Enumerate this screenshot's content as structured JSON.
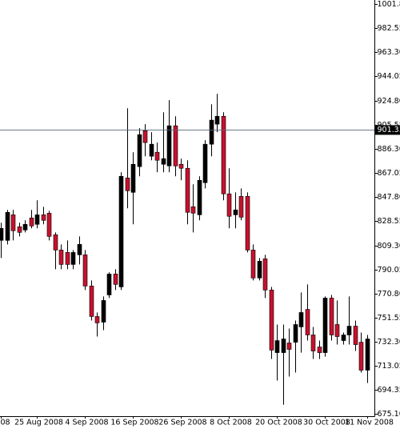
{
  "chart_data": {
    "type": "candlestick",
    "categories": [
      "008",
      null,
      null,
      null,
      null,
      null,
      "25 Aug 2008",
      null,
      null,
      null,
      null,
      null,
      null,
      null,
      "4 Sep 2008",
      null,
      null,
      null,
      null,
      null,
      null,
      null,
      "16 Sep 2008",
      null,
      null,
      null,
      null,
      null,
      null,
      null,
      "26 Sep 2008",
      null,
      null,
      null,
      null,
      null,
      null,
      null,
      "8 Oct 2008",
      null,
      null,
      null,
      null,
      null,
      null,
      null,
      "20 Oct 2008",
      null,
      null,
      null,
      null,
      null,
      null,
      null,
      "30 Oct 2008",
      null,
      null,
      null,
      null,
      null,
      null,
      "11 Nov 2008"
    ],
    "open": [
      813.3,
      813.3,
      833.7,
      824.2,
      821.6,
      831.2,
      826.1,
      833.7,
      835.0,
      817.8,
      805.6,
      803.7,
      794.1,
      801.8,
      801.8,
      776.9,
      752.6,
      748.1,
      769.8,
      786.5,
      776.2,
      863.1,
      851.6,
      872.1,
      900.8,
      880.4,
      883.6,
      874.0,
      872.7,
      904.7,
      874.0,
      870.8,
      840.1,
      833.7,
      859.3,
      890.0,
      906.0,
      912.3,
      850.4,
      833.7,
      848.4,
      848.4,
      805.6,
      783.3,
      798.6,
      773.7,
      723.8,
      723.8,
      731.5,
      732.1,
      744.3,
      758.3,
      737.9,
      728.3,
      723.8,
      767.3,
      746.2,
      733.4,
      737.9,
      744.9,
      732.1,
      709.8
    ],
    "high": [
      827.4,
      837.6,
      837.6,
      827.4,
      829.3,
      837.6,
      845.3,
      840.1,
      836.9,
      819.7,
      810.1,
      813.3,
      805.6,
      816.5,
      805.6,
      781.4,
      755.8,
      768.6,
      787.8,
      790.3,
      867.6,
      918.7,
      883.6,
      902.8,
      906.0,
      899.6,
      891.3,
      915.5,
      925.1,
      912.3,
      878.5,
      877.2,
      858.0,
      864.4,
      893.2,
      921.9,
      930.2,
      915.5,
      870.8,
      851.6,
      854.8,
      851.6,
      810.1,
      799.2,
      801.8,
      776.2,
      746.2,
      746.2,
      743.0,
      749.4,
      771.8,
      778.2,
      744.3,
      733.4,
      768.6,
      769.8,
      765.4,
      739.8,
      768.6,
      749.4,
      739.8,
      737.9
    ],
    "low": [
      799.2,
      810.1,
      813.3,
      816.5,
      819.7,
      822.9,
      822.9,
      826.1,
      813.3,
      790.3,
      790.3,
      790.3,
      790.3,
      794.1,
      773.7,
      749.4,
      736.6,
      741.7,
      767.3,
      773.7,
      773.7,
      838.9,
      826.1,
      864.4,
      880.4,
      877.2,
      867.6,
      867.6,
      867.6,
      864.4,
      861.2,
      826.1,
      819.7,
      829.3,
      854.8,
      880.4,
      899.6,
      845.3,
      822.9,
      822.9,
      829.3,
      803.7,
      781.4,
      781.4,
      767.3,
      718.7,
      701.5,
      682.3,
      704.7,
      707.9,
      723.8,
      733.4,
      718.7,
      718.7,
      720.6,
      733.4,
      730.2,
      730.2,
      730.2,
      725.1,
      707.9,
      699.6
    ],
    "close": [
      822.9,
      835.7,
      821.0,
      819.7,
      826.1,
      824.8,
      833.7,
      829.3,
      816.5,
      805.6,
      794.1,
      794.1,
      803.7,
      810.1,
      776.9,
      752.6,
      747.5,
      765.4,
      786.5,
      778.2,
      864.4,
      852.9,
      874.0,
      897.6,
      891.3,
      890.0,
      877.2,
      878.5,
      904.7,
      872.7,
      870.8,
      835.7,
      835.0,
      861.2,
      890.0,
      909.2,
      912.3,
      850.4,
      832.5,
      837.6,
      831.8,
      805.6,
      783.3,
      796.7,
      773.7,
      725.8,
      733.4,
      734.7,
      726.4,
      746.2,
      755.8,
      737.9,
      725.1,
      723.8,
      767.3,
      737.9,
      736.6,
      737.9,
      744.9,
      730.2,
      709.8,
      734.7
    ],
    "up_color": "#000000",
    "down_color": "#c8102e",
    "ylim": [
      673.1,
      1005
    ],
    "yticks": [
      {
        "value": 1001.8,
        "label": "1001.80"
      },
      982.55,
      {
        "value": 963.3,
        "label": "963.30"
      },
      944.05,
      {
        "value": 924.8,
        "label": "924.80"
      },
      905.55,
      {
        "value": 886.3,
        "label": "886.30"
      },
      867.05,
      {
        "value": 847.8,
        "label": "847.80"
      },
      828.55,
      {
        "value": 809.3,
        "label": "809.30"
      },
      790.05,
      {
        "value": 770.8,
        "label": "770.80"
      },
      751.55,
      {
        "value": 732.3,
        "label": "732.30"
      },
      713.05,
      694.35,
      {
        "value": 675.1,
        "label": "675.10"
      }
    ],
    "current_price": 901.33,
    "grid": false
  }
}
